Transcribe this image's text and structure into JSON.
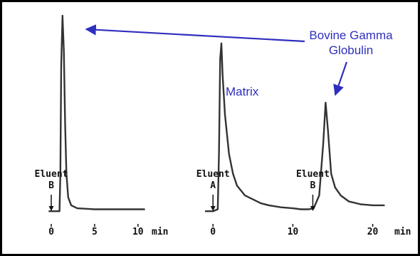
{
  "colors": {
    "trace": "#333333",
    "annotation": "#2f2fbf",
    "border": "#000000",
    "text": "#111111"
  },
  "annotations": {
    "bgg_line1": "Bovine Gamma",
    "bgg_line2": "Globulin",
    "matrix": "Matrix"
  },
  "chart_data": [
    {
      "type": "line",
      "title": "",
      "xlabel": "min",
      "ylabel": "",
      "xlim": [
        0,
        11
      ],
      "xticks": [
        0,
        5,
        10
      ],
      "xtick_labels": [
        "0",
        "5",
        "10"
      ],
      "eluent_label": [
        "Eluent",
        "B"
      ],
      "eluent_time": 0,
      "peak_time": 1.5,
      "trace_description": "baseline then single sharp peak",
      "series": [
        {
          "values": [
            [
              -0.3,
              0.01
            ],
            [
              0.0,
              0.01
            ],
            [
              0.8,
              0.01
            ],
            [
              0.95,
              0.01
            ],
            [
              1.05,
              0.2
            ],
            [
              1.15,
              0.75
            ],
            [
              1.3,
              1.0
            ],
            [
              1.45,
              0.82
            ],
            [
              1.6,
              0.45
            ],
            [
              1.75,
              0.2
            ],
            [
              1.95,
              0.08
            ],
            [
              2.3,
              0.04
            ],
            [
              3.0,
              0.025
            ],
            [
              5.0,
              0.02
            ],
            [
              7.5,
              0.02
            ],
            [
              10.8,
              0.02
            ]
          ]
        }
      ]
    },
    {
      "type": "line",
      "title": "",
      "xlabel": "min",
      "ylabel": "",
      "xlim": [
        -1,
        22
      ],
      "xticks": [
        0,
        10,
        20
      ],
      "xtick_labels": [
        "0",
        "10",
        "20"
      ],
      "eluent_markers": [
        {
          "time": 0,
          "label": [
            "Eluent",
            "A"
          ]
        },
        {
          "time": 12.5,
          "label": [
            "Eluent",
            "B"
          ]
        }
      ],
      "series": [
        {
          "values": [
            [
              -1.0,
              0.01
            ],
            [
              0.0,
              0.01
            ],
            [
              0.6,
              0.02
            ],
            [
              0.75,
              0.3
            ],
            [
              0.9,
              0.78
            ],
            [
              1.05,
              0.86
            ],
            [
              1.2,
              0.7
            ],
            [
              1.5,
              0.5
            ],
            [
              2.0,
              0.3
            ],
            [
              2.5,
              0.2
            ],
            [
              3.0,
              0.14
            ],
            [
              4.0,
              0.09
            ],
            [
              5.0,
              0.07
            ],
            [
              6.0,
              0.05
            ],
            [
              7.0,
              0.04
            ],
            [
              8.5,
              0.03
            ],
            [
              10.0,
              0.025
            ],
            [
              11.0,
              0.02
            ],
            [
              12.0,
              0.02
            ],
            [
              12.6,
              0.025
            ],
            [
              13.3,
              0.09
            ],
            [
              13.8,
              0.35
            ],
            [
              14.1,
              0.56
            ],
            [
              14.4,
              0.42
            ],
            [
              14.8,
              0.2
            ],
            [
              15.3,
              0.13
            ],
            [
              16.0,
              0.09
            ],
            [
              17.0,
              0.06
            ],
            [
              18.5,
              0.045
            ],
            [
              20.0,
              0.04
            ],
            [
              21.5,
              0.04
            ]
          ]
        }
      ]
    }
  ]
}
